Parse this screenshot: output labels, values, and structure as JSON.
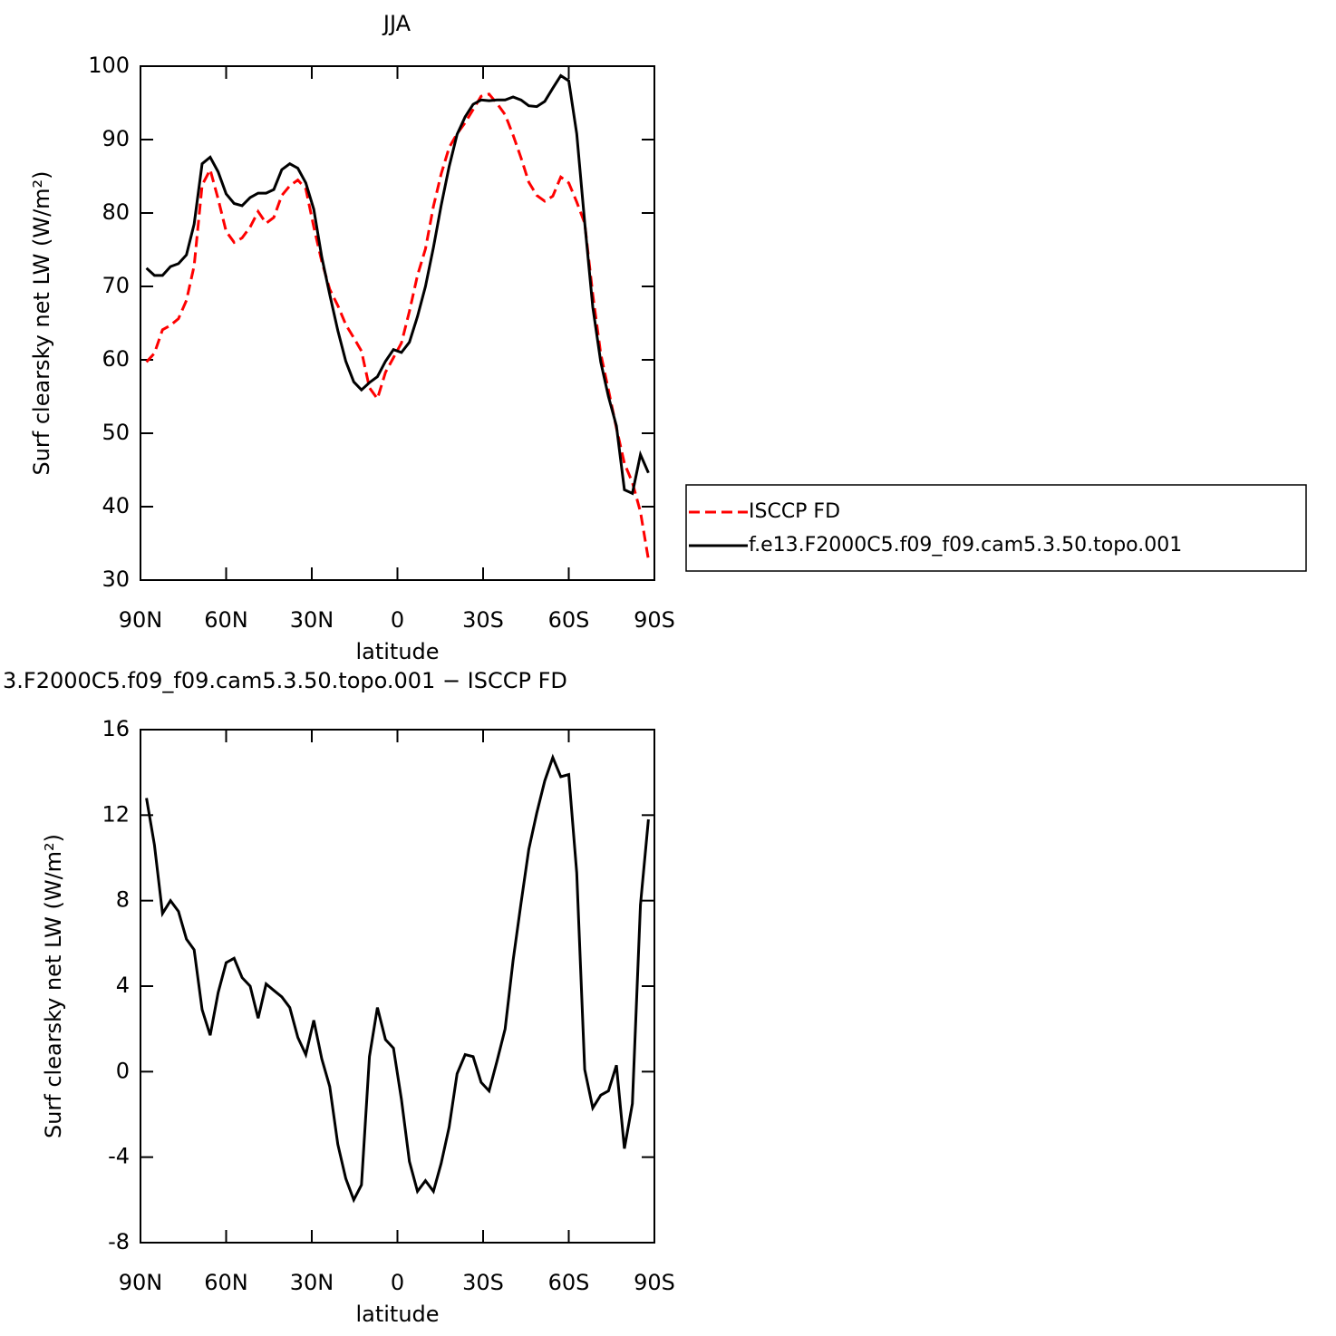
{
  "chart_data": [
    {
      "type": "line",
      "title": "JJA",
      "x_label": "latitude",
      "y_label": "Surf clearsky net LW (W/m²)",
      "x": [
        87.9,
        85.1,
        82.3,
        79.5,
        76.7,
        73.9,
        71.2,
        68.4,
        65.6,
        62.8,
        60.0,
        57.2,
        54.4,
        51.6,
        48.8,
        46.0,
        43.3,
        40.5,
        37.7,
        34.9,
        32.1,
        29.3,
        26.5,
        23.7,
        20.9,
        18.1,
        15.3,
        12.6,
        9.8,
        7.0,
        4.2,
        1.4,
        -1.4,
        -4.2,
        -7.0,
        -9.8,
        -12.6,
        -15.3,
        -18.1,
        -20.9,
        -23.7,
        -26.5,
        -29.3,
        -32.1,
        -34.9,
        -37.7,
        -40.5,
        -43.3,
        -46.0,
        -48.8,
        -51.6,
        -54.4,
        -57.2,
        -60.0,
        -62.8,
        -65.6,
        -68.4,
        -71.2,
        -73.9,
        -76.7,
        -79.5,
        -82.3,
        -85.1,
        -87.9
      ],
      "series": [
        {
          "name": "ISCCP FD",
          "color": "#ff0000",
          "style": "dashed",
          "values": [
            59.7,
            60.9,
            64.1,
            64.7,
            65.6,
            68.1,
            72.8,
            83.8,
            85.9,
            81.9,
            77.5,
            76.0,
            76.6,
            78.1,
            80.2,
            78.6,
            79.4,
            82.4,
            83.7,
            84.5,
            83.3,
            78.1,
            73.4,
            69.6,
            67.4,
            64.8,
            63.0,
            61.2,
            56.2,
            54.7,
            58.3,
            60.3,
            62.3,
            66.6,
            71.5,
            75.1,
            80.9,
            85.3,
            88.9,
            90.8,
            92.3,
            94.1,
            95.9,
            96.2,
            94.9,
            93.4,
            90.6,
            87.5,
            84.2,
            82.4,
            81.6,
            82.3,
            84.9,
            84.1,
            81.5,
            78.6,
            68.9,
            60.8,
            55.9,
            50.7,
            45.9,
            43.3,
            39.3,
            32.8
          ]
        },
        {
          "name": "f.e13.F2000C5.f09_f09.cam5.3.50.topo.001",
          "color": "#000000",
          "style": "solid",
          "values": [
            72.5,
            71.5,
            71.5,
            72.7,
            73.1,
            74.3,
            78.5,
            86.7,
            87.6,
            85.6,
            82.6,
            81.3,
            81.0,
            82.1,
            82.7,
            82.7,
            83.2,
            85.9,
            86.7,
            86.1,
            84.1,
            80.5,
            74.0,
            68.9,
            64.0,
            59.8,
            57.0,
            55.9,
            56.9,
            57.7,
            59.8,
            61.4,
            61.0,
            62.4,
            65.9,
            70.0,
            75.3,
            81.0,
            86.3,
            90.7,
            93.1,
            94.8,
            95.4,
            95.3,
            95.4,
            95.4,
            95.8,
            95.4,
            94.6,
            94.5,
            95.2,
            97.0,
            98.7,
            98.0,
            90.8,
            78.7,
            67.2,
            59.7,
            55.0,
            51.0,
            42.3,
            41.8,
            47.1,
            44.6
          ]
        }
      ],
      "xlim": [
        90,
        -90
      ],
      "xticks": [
        {
          "value": 90,
          "label": "90N"
        },
        {
          "value": 60,
          "label": "60N"
        },
        {
          "value": 30,
          "label": "30N"
        },
        0,
        {
          "value": -30,
          "label": "30S"
        },
        {
          "value": -60,
          "label": "60S"
        },
        {
          "value": -90,
          "label": "90S"
        }
      ],
      "ylim": [
        30,
        100
      ],
      "yticks": [
        30,
        40,
        50,
        60,
        70,
        80,
        90,
        100
      ],
      "legend": "right"
    },
    {
      "type": "line",
      "title": "3.F2000C5.f09_f09.cam5.3.50.topo.001 − ISCCP FD",
      "x_label": "latitude",
      "y_label": "Surf clearsky net LW (W/m²)",
      "x": [
        87.9,
        85.1,
        82.3,
        79.5,
        76.7,
        73.9,
        71.2,
        68.4,
        65.6,
        62.8,
        60.0,
        57.2,
        54.4,
        51.6,
        48.8,
        46.0,
        43.3,
        40.5,
        37.7,
        34.9,
        32.1,
        29.3,
        26.5,
        23.7,
        20.9,
        18.1,
        15.3,
        12.6,
        9.8,
        7.0,
        4.2,
        1.4,
        -1.4,
        -4.2,
        -7.0,
        -9.8,
        -12.6,
        -15.3,
        -18.1,
        -20.9,
        -23.7,
        -26.5,
        -29.3,
        -32.1,
        -34.9,
        -37.7,
        -40.5,
        -43.3,
        -46.0,
        -48.8,
        -51.6,
        -54.4,
        -57.2,
        -60.0,
        -62.8,
        -65.6,
        -68.4,
        -71.2,
        -73.9,
        -76.7,
        -79.5,
        -82.3,
        -85.1,
        -87.9
      ],
      "series": [
        {
          "color": "#000000",
          "style": "solid",
          "values": [
            12.8,
            10.6,
            7.4,
            8.0,
            7.5,
            6.2,
            5.7,
            2.9,
            1.7,
            3.7,
            5.1,
            5.3,
            4.4,
            4.0,
            2.5,
            4.1,
            3.8,
            3.5,
            3.0,
            1.6,
            0.8,
            2.4,
            0.6,
            -0.7,
            -3.4,
            -5.0,
            -6.0,
            -5.3,
            0.7,
            3.0,
            1.5,
            1.1,
            -1.3,
            -4.2,
            -5.6,
            -5.1,
            -5.6,
            -4.3,
            -2.6,
            -0.1,
            0.8,
            0.7,
            -0.5,
            -0.9,
            0.5,
            2.0,
            5.2,
            7.9,
            10.4,
            12.1,
            13.6,
            14.7,
            13.8,
            13.9,
            9.3,
            0.1,
            -1.7,
            -1.1,
            -0.9,
            0.3,
            -3.6,
            -1.5,
            7.8,
            11.8
          ]
        }
      ],
      "xlim": [
        90,
        -90
      ],
      "xticks": [
        {
          "value": 90,
          "label": "90N"
        },
        {
          "value": 60,
          "label": "60N"
        },
        {
          "value": 30,
          "label": "30N"
        },
        0,
        {
          "value": -30,
          "label": "30S"
        },
        {
          "value": -60,
          "label": "60S"
        },
        {
          "value": -90,
          "label": "90S"
        }
      ],
      "ylim": [
        -8,
        16
      ],
      "yticks": [
        -8,
        -4,
        0,
        4,
        8,
        12,
        16
      ]
    }
  ]
}
